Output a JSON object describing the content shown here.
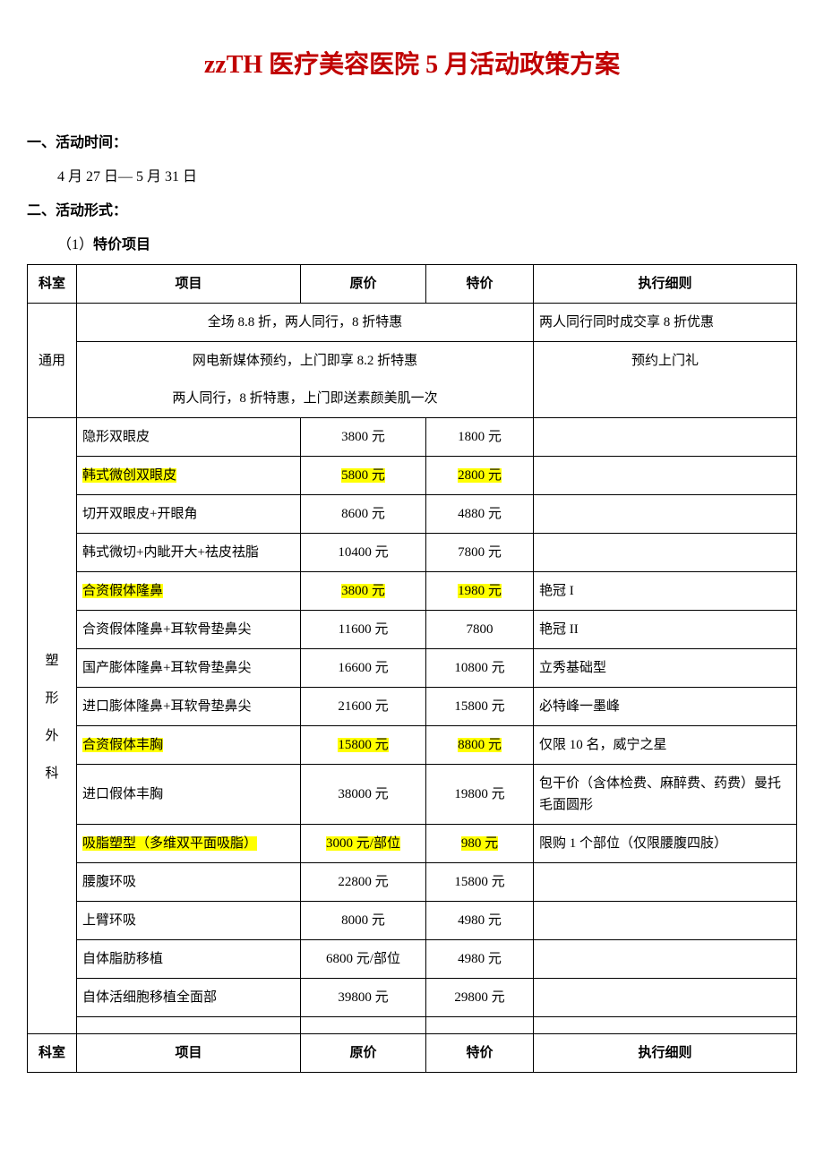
{
  "title": "zzTH 医疗美容医院 5 月活动政策方案",
  "section1_label": "一、活动时间：",
  "section1_value": "4 月 27 日— 5 月 31 日",
  "section2_label": "二、活动形式：",
  "section2_sub": "（1）特价项目",
  "headers": {
    "dept": "科室",
    "project": "项目",
    "orig": "原价",
    "sale": "特价",
    "rule": "执行细则"
  },
  "common_dept": "通用",
  "common_rows": [
    {
      "span_text": "全场 8.8 折，两人同行，8 折特惠",
      "rule": "两人同行同时成交享 8 折优惠"
    },
    {
      "span_text": "网电新媒体预约，上门即享 8.2 折特惠",
      "rule": "预约上门礼"
    },
    {
      "span_text": "两人同行，8 折特惠，上门即送素颜美肌一次",
      "rule": ""
    }
  ],
  "surgery_dept": "塑 形 外 科",
  "surgery_rows": [
    {
      "project": "隐形双眼皮",
      "orig": "3800 元",
      "sale": "1800 元",
      "rule": "",
      "hl": false
    },
    {
      "project": "韩式微创双眼皮",
      "orig": "5800 元",
      "sale": "2800 元",
      "rule": "",
      "hl": true
    },
    {
      "project": "切开双眼皮+开眼角",
      "orig": "8600 元",
      "sale": "4880 元",
      "rule": "",
      "hl": false
    },
    {
      "project": "韩式微切+内眦开大+祛皮祛脂",
      "orig": "10400 元",
      "sale": "7800 元",
      "rule": "",
      "hl": false
    },
    {
      "project": "合资假体隆鼻",
      "orig": "3800 元",
      "sale": "1980 元",
      "rule": "艳冠 I",
      "hl": true
    },
    {
      "project": "合资假体隆鼻+耳软骨垫鼻尖",
      "orig": "11600 元",
      "sale": "7800",
      "rule": "艳冠 II",
      "hl": false
    },
    {
      "project": "国产膨体隆鼻+耳软骨垫鼻尖",
      "orig": "16600 元",
      "sale": "10800 元",
      "rule": "立秀基础型",
      "hl": false
    },
    {
      "project": "进口膨体隆鼻+耳软骨垫鼻尖",
      "orig": "21600 元",
      "sale": "15800 元",
      "rule": "必特峰一墨峰",
      "hl": false
    },
    {
      "project": "合资假体丰胸",
      "orig": "15800 元",
      "sale": "8800 元",
      "rule": "仅限 10 名，威宁之星",
      "hl": true
    },
    {
      "project": "进口假体丰胸",
      "orig": "38000 元",
      "sale": "19800 元",
      "rule": "包干价（含体检费、麻醉费、药费）曼托毛面圆形",
      "hl": false
    },
    {
      "project": "吸脂塑型（多维双平面吸脂）",
      "orig": "3000 元/部位",
      "sale": "980 元",
      "rule": "限购 1 个部位（仅限腰腹四肢）",
      "hl": true
    },
    {
      "project": "腰腹环吸",
      "orig": "22800 元",
      "sale": "15800 元",
      "rule": "",
      "hl": false
    },
    {
      "project": "上臂环吸",
      "orig": "8000 元",
      "sale": "4980 元",
      "rule": "",
      "hl": false
    },
    {
      "project": "自体脂肪移植",
      "orig": "6800 元/部位",
      "sale": "4980 元",
      "rule": "",
      "hl": false
    },
    {
      "project": "自体活细胞移植全面部",
      "orig": "39800 元",
      "sale": "29800 元",
      "rule": "",
      "hl": false
    }
  ],
  "colors": {
    "title": "#c00000",
    "highlight": "#ffff00",
    "border": "#000000",
    "background": "#ffffff"
  }
}
